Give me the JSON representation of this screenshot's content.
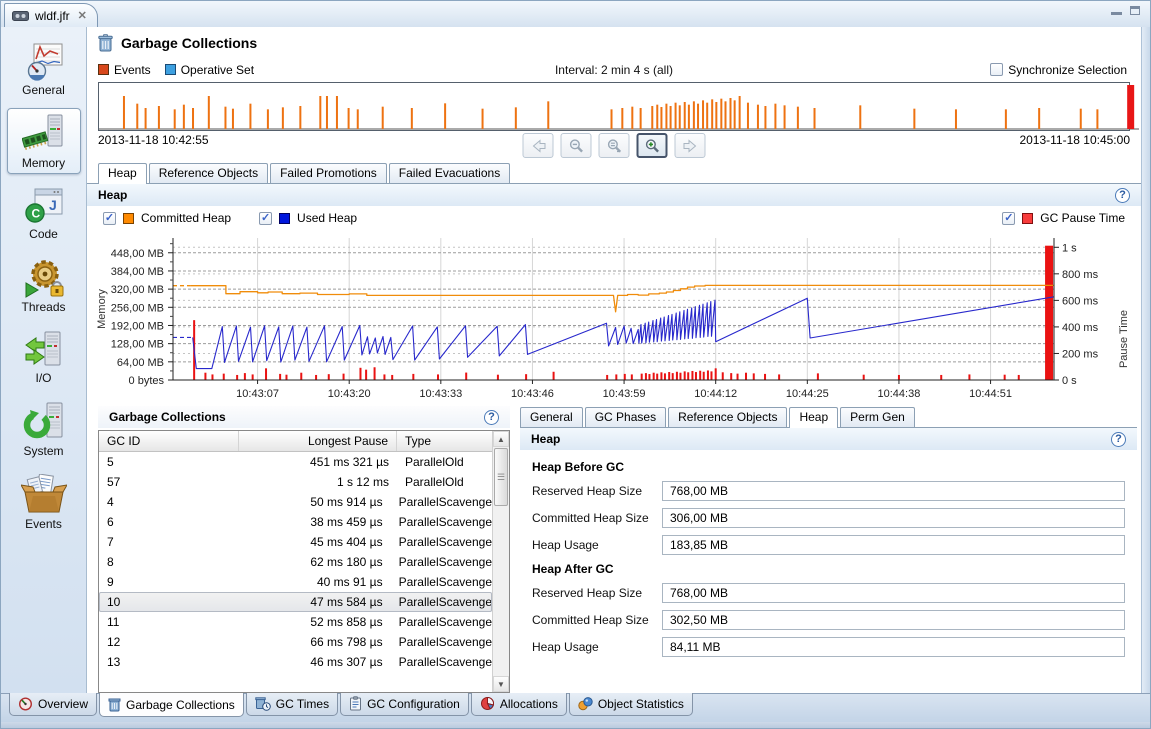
{
  "window": {
    "tab_title": "wldf.jfr"
  },
  "header": {
    "title": "Garbage Collections"
  },
  "controls": {
    "events_label": "Events",
    "operative_set_label": "Operative Set",
    "interval_label": "Interval: 2 min 4 s (all)",
    "sync_label": "Synchronize Selection",
    "start_time": "2013-11-18 10:42:55",
    "end_time": "2013-11-18 10:45:00",
    "colors": {
      "events": "#d8481c",
      "operative_set": "#3da0e0"
    }
  },
  "subtabs": {
    "items": [
      {
        "label": "Heap"
      },
      {
        "label": "Reference Objects"
      },
      {
        "label": "Failed Promotions"
      },
      {
        "label": "Failed Evacuations"
      }
    ],
    "active": 0
  },
  "heap_section": {
    "title": "Heap",
    "legend": [
      {
        "label": "Committed Heap",
        "color": "#ff8a00",
        "checked": true
      },
      {
        "label": "Used Heap",
        "color": "#0016dd",
        "checked": true
      }
    ],
    "legend_right": {
      "label": "GC Pause Time",
      "color": "#f83c3c",
      "checked": true
    }
  },
  "chart": {
    "type": "line+bar",
    "x_start_s": 0,
    "x_end_s": 125,
    "x_ticks": [
      {
        "t": 12,
        "label": "10:43:07"
      },
      {
        "t": 25,
        "label": "10:43:20"
      },
      {
        "t": 38,
        "label": "10:43:33"
      },
      {
        "t": 51,
        "label": "10:43:46"
      },
      {
        "t": 64,
        "label": "10:43:59"
      },
      {
        "t": 77,
        "label": "10:44:12"
      },
      {
        "t": 90,
        "label": "10:44:25"
      },
      {
        "t": 103,
        "label": "10:44:38"
      },
      {
        "t": 116,
        "label": "10:44:51"
      }
    ],
    "memory_axis": {
      "label": "Memory",
      "max": 500,
      "ticks": [
        {
          "v": 448,
          "label": "448,00 MB"
        },
        {
          "v": 384,
          "label": "384,00 MB"
        },
        {
          "v": 320,
          "label": "320,00 MB"
        },
        {
          "v": 256,
          "label": "256,00 MB"
        },
        {
          "v": 192,
          "label": "192,00 MB"
        },
        {
          "v": 128,
          "label": "128,00 MB"
        },
        {
          "v": 64,
          "label": "64,00 MB"
        },
        {
          "v": 0,
          "label": "0 bytes"
        }
      ]
    },
    "pause_axis": {
      "label": "Pause Time",
      "max": 1070,
      "ticks": [
        {
          "v": 1000,
          "label": "1 s"
        },
        {
          "v": 800,
          "label": "800 ms"
        },
        {
          "v": 600,
          "label": "600 ms"
        },
        {
          "v": 400,
          "label": "400 ms"
        },
        {
          "v": 200,
          "label": "200 ms"
        },
        {
          "v": 0,
          "label": "0 s"
        }
      ]
    },
    "series": {
      "committed_lead": [
        [
          0,
          332
        ],
        [
          2.5,
          332
        ]
      ],
      "committed_mb": [
        [
          2.5,
          332
        ],
        [
          7.5,
          332
        ],
        [
          7.5,
          304
        ],
        [
          9.5,
          304
        ],
        [
          9.5,
          311
        ],
        [
          12,
          311
        ],
        [
          12,
          307
        ],
        [
          13.5,
          307
        ],
        [
          13.5,
          310
        ],
        [
          15.5,
          310
        ],
        [
          15.5,
          304
        ],
        [
          18,
          304
        ],
        [
          18,
          306
        ],
        [
          20.5,
          306
        ],
        [
          20.5,
          301
        ],
        [
          25,
          301
        ],
        [
          25,
          303
        ],
        [
          27.5,
          303
        ],
        [
          27.5,
          298
        ],
        [
          62.5,
          298
        ],
        [
          62.8,
          240
        ],
        [
          63.1,
          298
        ],
        [
          64.5,
          298
        ],
        [
          64.5,
          301
        ],
        [
          66,
          301
        ],
        [
          66,
          299
        ],
        [
          67.5,
          299
        ],
        [
          67.5,
          303
        ],
        [
          69,
          303
        ],
        [
          69,
          306
        ],
        [
          70,
          306
        ],
        [
          70,
          310
        ],
        [
          71,
          310
        ],
        [
          71,
          315
        ],
        [
          72,
          315
        ],
        [
          72,
          321
        ],
        [
          73,
          321
        ],
        [
          73,
          327
        ],
        [
          74,
          327
        ],
        [
          74,
          331
        ],
        [
          75.5,
          331
        ],
        [
          75.5,
          333
        ],
        [
          125,
          333
        ]
      ],
      "used_lead": [
        [
          0,
          150
        ],
        [
          2.8,
          150
        ]
      ],
      "used_mb": [
        [
          2.8,
          150
        ],
        [
          3.3,
          40
        ],
        [
          5.5,
          40
        ],
        [
          7,
          188
        ],
        [
          7.3,
          62
        ],
        [
          9,
          190
        ],
        [
          9.3,
          66
        ],
        [
          11,
          186
        ],
        [
          11.3,
          64
        ],
        [
          13,
          191
        ],
        [
          13.3,
          68
        ],
        [
          15,
          187
        ],
        [
          15.3,
          63
        ],
        [
          17,
          190
        ],
        [
          17.3,
          70
        ],
        [
          19,
          186
        ],
        [
          19.3,
          66
        ],
        [
          21.5,
          191
        ],
        [
          21.8,
          64
        ],
        [
          24,
          188
        ],
        [
          24.3,
          70
        ],
        [
          26.5,
          192
        ],
        [
          26.8,
          88
        ],
        [
          27.6,
          152
        ],
        [
          27.9,
          92
        ],
        [
          28.7,
          148
        ],
        [
          29,
          95
        ],
        [
          29.8,
          153
        ],
        [
          30.1,
          90
        ],
        [
          30.9,
          150
        ],
        [
          31.2,
          72
        ],
        [
          34,
          190
        ],
        [
          34.3,
          70
        ],
        [
          37.5,
          187
        ],
        [
          37.8,
          74
        ],
        [
          41.5,
          191
        ],
        [
          41.8,
          80
        ],
        [
          46,
          189
        ],
        [
          46.3,
          85
        ],
        [
          50,
          195
        ],
        [
          50.3,
          90
        ],
        [
          61.5,
          200
        ],
        [
          61.8,
          120
        ],
        [
          62.8,
          185
        ],
        [
          63.1,
          125
        ],
        [
          64,
          190
        ],
        [
          64.3,
          130
        ],
        [
          65,
          182
        ],
        [
          65.3,
          128
        ],
        [
          66,
          178
        ],
        [
          66.1,
          130
        ],
        [
          66.4,
          195
        ],
        [
          66.5,
          130
        ],
        [
          67,
          200
        ],
        [
          67.1,
          131
        ],
        [
          67.5,
          204
        ],
        [
          67.6,
          133
        ],
        [
          68.1,
          209
        ],
        [
          68.2,
          134
        ],
        [
          68.6,
          213
        ],
        [
          68.7,
          135
        ],
        [
          69.2,
          218
        ],
        [
          69.3,
          137
        ],
        [
          69.7,
          222
        ],
        [
          69.8,
          138
        ],
        [
          70.3,
          227
        ],
        [
          70.4,
          139
        ],
        [
          70.8,
          231
        ],
        [
          70.9,
          141
        ],
        [
          71.4,
          236
        ],
        [
          71.5,
          142
        ],
        [
          71.9,
          240
        ],
        [
          72,
          143
        ],
        [
          72.5,
          245
        ],
        [
          72.6,
          145
        ],
        [
          73,
          249
        ],
        [
          73.1,
          146
        ],
        [
          73.6,
          254
        ],
        [
          73.7,
          147
        ],
        [
          74.1,
          258
        ],
        [
          74.2,
          149
        ],
        [
          74.7,
          263
        ],
        [
          74.8,
          150
        ],
        [
          75.2,
          267
        ],
        [
          75.3,
          151
        ],
        [
          75.8,
          272
        ],
        [
          75.9,
          153
        ],
        [
          76.3,
          276
        ],
        [
          76.4,
          154
        ],
        [
          76.9,
          281
        ],
        [
          77,
          135
        ],
        [
          90,
          288
        ],
        [
          90.4,
          148
        ],
        [
          125,
          293
        ]
      ],
      "pauses_ms": [
        [
          3,
          451
        ],
        [
          4.6,
          55
        ],
        [
          5.6,
          42
        ],
        [
          7.2,
          48
        ],
        [
          9.1,
          38
        ],
        [
          10.2,
          52
        ],
        [
          11.3,
          42
        ],
        [
          13.2,
          88
        ],
        [
          15.2,
          46
        ],
        [
          16.1,
          40
        ],
        [
          18.2,
          55
        ],
        [
          20.3,
          38
        ],
        [
          22.1,
          44
        ],
        [
          24.2,
          48
        ],
        [
          26.6,
          92
        ],
        [
          27.4,
          78
        ],
        [
          28.6,
          96
        ],
        [
          30,
          42
        ],
        [
          31.1,
          38
        ],
        [
          34.1,
          46
        ],
        [
          37.6,
          42
        ],
        [
          41.6,
          56
        ],
        [
          46.1,
          40
        ],
        [
          50.1,
          44
        ],
        [
          54,
          62
        ],
        [
          61.6,
          38
        ],
        [
          62.9,
          42
        ],
        [
          64.1,
          46
        ],
        [
          65.1,
          42
        ],
        [
          66.5,
          48
        ],
        [
          67.1,
          52
        ],
        [
          67.6,
          45
        ],
        [
          68.2,
          55
        ],
        [
          68.7,
          48
        ],
        [
          69.3,
          58
        ],
        [
          69.8,
          50
        ],
        [
          70.4,
          60
        ],
        [
          70.9,
          52
        ],
        [
          71.5,
          62
        ],
        [
          72,
          55
        ],
        [
          72.6,
          65
        ],
        [
          73.1,
          58
        ],
        [
          73.7,
          68
        ],
        [
          74.2,
          60
        ],
        [
          74.8,
          70
        ],
        [
          75.3,
          62
        ],
        [
          75.9,
          72
        ],
        [
          76.4,
          65
        ],
        [
          77,
          88
        ],
        [
          78,
          58
        ],
        [
          79.2,
          52
        ],
        [
          80.1,
          48
        ],
        [
          81.3,
          55
        ],
        [
          82.4,
          50
        ],
        [
          84,
          46
        ],
        [
          86,
          42
        ],
        [
          91.5,
          50
        ],
        [
          98,
          40
        ],
        [
          103,
          38
        ],
        [
          109,
          38
        ],
        [
          113,
          42
        ],
        [
          118,
          40
        ],
        [
          120,
          38
        ],
        [
          124.3,
          1012
        ]
      ],
      "line_colors": {
        "committed": "#f08c0a",
        "used": "#2828cc",
        "pause_bar": "#ea1212",
        "timeline_spike": "#ee7211"
      }
    }
  },
  "gc_table": {
    "title": "Garbage Collections",
    "columns": [
      "GC ID",
      "Longest Pause",
      "Type"
    ],
    "rows": [
      [
        "5",
        "451 ms 321 µs",
        "ParallelOld"
      ],
      [
        "57",
        "1 s 12 ms",
        "ParallelOld"
      ],
      [
        "4",
        "50 ms 914 µs",
        "ParallelScavenge"
      ],
      [
        "6",
        "38 ms 459 µs",
        "ParallelScavenge"
      ],
      [
        "7",
        "45 ms 404 µs",
        "ParallelScavenge"
      ],
      [
        "8",
        "62 ms 180 µs",
        "ParallelScavenge"
      ],
      [
        "9",
        "40 ms 91 µs",
        "ParallelScavenge"
      ],
      [
        "10",
        "47 ms 584 µs",
        "ParallelScavenge"
      ],
      [
        "11",
        "52 ms 858 µs",
        "ParallelScavenge"
      ],
      [
        "12",
        "66 ms 798 µs",
        "ParallelScavenge"
      ],
      [
        "13",
        "46 ms 307 µs",
        "ParallelScavenge"
      ]
    ],
    "selected_gc_id": "10"
  },
  "detail": {
    "tabs": [
      {
        "label": "General"
      },
      {
        "label": "GC Phases"
      },
      {
        "label": "Reference Objects"
      },
      {
        "label": "Heap"
      },
      {
        "label": "Perm Gen"
      }
    ],
    "active_tab": 3,
    "section_title": "Heap",
    "groups": [
      {
        "heading": "Heap Before GC",
        "fields": [
          {
            "label": "Reserved Heap Size",
            "value": "768,00 MB"
          },
          {
            "label": "Committed Heap Size",
            "value": "306,00 MB"
          },
          {
            "label": "Heap Usage",
            "value": "183,85 MB"
          }
        ]
      },
      {
        "heading": "Heap After GC",
        "fields": [
          {
            "label": "Reserved Heap Size",
            "value": "768,00 MB"
          },
          {
            "label": "Committed Heap Size",
            "value": "302,50 MB"
          },
          {
            "label": "Heap Usage",
            "value": "84,11 MB"
          }
        ]
      }
    ]
  },
  "sidebar": {
    "items": [
      {
        "label": "General"
      },
      {
        "label": "Memory"
      },
      {
        "label": "Code"
      },
      {
        "label": "Threads"
      },
      {
        "label": "I/O"
      },
      {
        "label": "System"
      },
      {
        "label": "Events"
      }
    ],
    "active": 1
  },
  "bottom_tabs": {
    "items": [
      {
        "label": "Overview"
      },
      {
        "label": "Garbage Collections"
      },
      {
        "label": "GC Times"
      },
      {
        "label": "GC Configuration"
      },
      {
        "label": "Allocations"
      },
      {
        "label": "Object Statistics"
      }
    ],
    "active": 1
  }
}
